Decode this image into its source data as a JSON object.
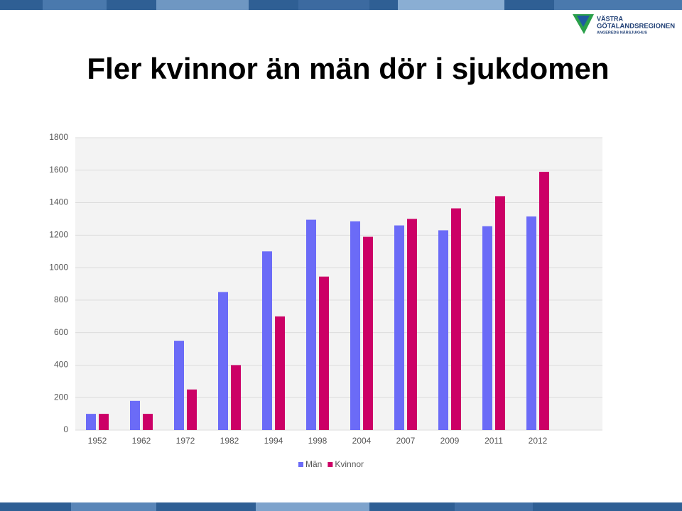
{
  "logo": {
    "line1": "VÄSTRA",
    "line2": "GÖTALANDSREGIONEN",
    "line3": "ANGEREDS NÄRSJUKHUS"
  },
  "chart_data": {
    "type": "bar",
    "title": "Fler kvinnor än män dör i sjukdomen",
    "categories": [
      "1952",
      "1962",
      "1972",
      "1982",
      "1994",
      "1998",
      "2004",
      "2007",
      "2009",
      "2011",
      "2012"
    ],
    "series": [
      {
        "name": "Män",
        "color": "#6b6bf7",
        "values": [
          100,
          180,
          550,
          850,
          1100,
          1295,
          1285,
          1260,
          1230,
          1255,
          1315
        ]
      },
      {
        "name": "Kvinnor",
        "color": "#cc0066",
        "values": [
          100,
          100,
          250,
          400,
          700,
          945,
          1190,
          1300,
          1365,
          1440,
          1590
        ]
      }
    ],
    "ylim": [
      0,
      1800
    ],
    "yticks": [
      0,
      200,
      400,
      600,
      800,
      1000,
      1200,
      1400,
      1600,
      1800
    ],
    "grid": true,
    "legend": "bottom"
  }
}
